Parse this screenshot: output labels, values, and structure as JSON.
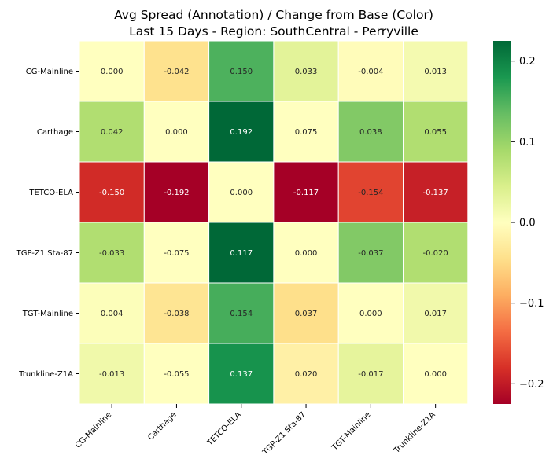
{
  "chart_data": {
    "type": "heatmap",
    "title_lines": [
      "Avg Spread (Annotation) / Change from Base (Color)",
      "Last 15 Days - Region: SouthCentral - Perryville"
    ],
    "row_labels": [
      "CG-Mainline",
      "Carthage",
      "TETCO-ELA",
      "TGP-Z1 Sta-87",
      "TGT-Mainline",
      "Trunkline-Z1A"
    ],
    "col_labels": [
      "CG-Mainline",
      "Carthage",
      "TETCO-ELA",
      "TGP-Z1 Sta-87",
      "TGT-Mainline",
      "Trunkline-Z1A"
    ],
    "annotations": [
      [
        "0.000",
        "-0.042",
        "0.150",
        "0.033",
        "-0.004",
        "0.013"
      ],
      [
        "0.042",
        "0.000",
        "0.192",
        "0.075",
        "0.038",
        "0.055"
      ],
      [
        "-0.150",
        "-0.192",
        "0.000",
        "-0.117",
        "-0.154",
        "-0.137"
      ],
      [
        "-0.033",
        "-0.075",
        "0.117",
        "0.000",
        "-0.037",
        "-0.020"
      ],
      [
        "0.004",
        "-0.038",
        "0.154",
        "0.037",
        "0.000",
        "0.017"
      ],
      [
        "-0.013",
        "-0.055",
        "0.137",
        "0.020",
        "-0.017",
        "0.000"
      ]
    ],
    "color_values": [
      [
        0.0,
        -0.042,
        0.15,
        0.033,
        -0.004,
        0.013
      ],
      [
        0.08,
        0.0,
        0.225,
        0.0,
        0.115,
        0.08
      ],
      [
        -0.185,
        -0.225,
        0.0,
        -0.225,
        -0.165,
        -0.195
      ],
      [
        0.08,
        0.0,
        0.225,
        0.0,
        0.115,
        0.08
      ],
      [
        0.004,
        -0.038,
        0.154,
        -0.045,
        0.0,
        0.017
      ],
      [
        0.018,
        0.0,
        0.185,
        -0.022,
        0.03,
        0.0
      ]
    ],
    "colormap": "RdYlGn",
    "vmin": -0.225,
    "vmax": 0.225,
    "colorbar_ticks": [
      0.2,
      0.1,
      0.0,
      -0.1,
      -0.2
    ],
    "colorbar_tick_labels": [
      "0.2",
      "0.1",
      "0.0",
      "−0.1",
      "−0.2"
    ]
  }
}
